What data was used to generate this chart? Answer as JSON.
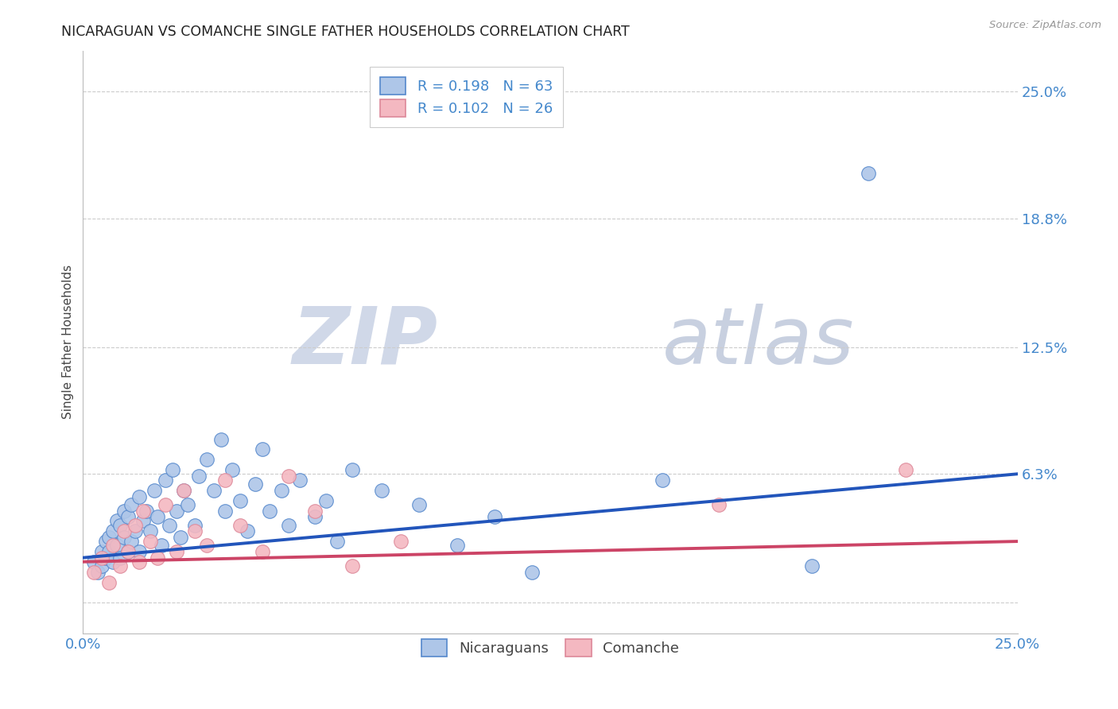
{
  "title": "NICARAGUAN VS COMANCHE SINGLE FATHER HOUSEHOLDS CORRELATION CHART",
  "source": "Source: ZipAtlas.com",
  "ylabel": "Single Father Households",
  "xmin": 0.0,
  "xmax": 0.25,
  "ymin": -0.015,
  "ymax": 0.27,
  "ytick_positions": [
    0.0,
    0.063,
    0.125,
    0.188,
    0.25
  ],
  "ytick_labels": [
    "",
    "6.3%",
    "12.5%",
    "18.8%",
    "25.0%"
  ],
  "xtick_positions": [
    0.0,
    0.05,
    0.1,
    0.15,
    0.2,
    0.25
  ],
  "xtick_labels": [
    "0.0%",
    "",
    "",
    "",
    "",
    "25.0%"
  ],
  "blue_R": 0.198,
  "blue_N": 63,
  "pink_R": 0.102,
  "pink_N": 26,
  "blue_color": "#aec6e8",
  "pink_color": "#f4b8c1",
  "blue_edge_color": "#5588cc",
  "pink_edge_color": "#dd8899",
  "blue_line_color": "#2255bb",
  "pink_line_color": "#cc4466",
  "title_color": "#222222",
  "axis_label_color": "#444444",
  "tick_label_color": "#4488cc",
  "grid_color": "#cccccc",
  "background_color": "#ffffff",
  "watermark_zip_color": "#d0d8e8",
  "watermark_atlas_color": "#c8d0e0",
  "blue_line_y0": 0.022,
  "blue_line_y1": 0.063,
  "pink_line_y0": 0.02,
  "pink_line_y1": 0.03,
  "blue_scatter_x": [
    0.003,
    0.004,
    0.005,
    0.005,
    0.006,
    0.006,
    0.007,
    0.007,
    0.008,
    0.008,
    0.009,
    0.009,
    0.01,
    0.01,
    0.011,
    0.011,
    0.012,
    0.012,
    0.013,
    0.013,
    0.014,
    0.015,
    0.015,
    0.016,
    0.017,
    0.018,
    0.019,
    0.02,
    0.021,
    0.022,
    0.023,
    0.024,
    0.025,
    0.026,
    0.027,
    0.028,
    0.03,
    0.031,
    0.033,
    0.035,
    0.037,
    0.038,
    0.04,
    0.042,
    0.044,
    0.046,
    0.048,
    0.05,
    0.053,
    0.055,
    0.058,
    0.062,
    0.065,
    0.068,
    0.072,
    0.08,
    0.09,
    0.1,
    0.11,
    0.12,
    0.155,
    0.195,
    0.21
  ],
  "blue_scatter_y": [
    0.02,
    0.015,
    0.025,
    0.018,
    0.022,
    0.03,
    0.025,
    0.032,
    0.02,
    0.035,
    0.028,
    0.04,
    0.022,
    0.038,
    0.032,
    0.045,
    0.025,
    0.042,
    0.03,
    0.048,
    0.035,
    0.025,
    0.052,
    0.04,
    0.045,
    0.035,
    0.055,
    0.042,
    0.028,
    0.06,
    0.038,
    0.065,
    0.045,
    0.032,
    0.055,
    0.048,
    0.038,
    0.062,
    0.07,
    0.055,
    0.08,
    0.045,
    0.065,
    0.05,
    0.035,
    0.058,
    0.075,
    0.045,
    0.055,
    0.038,
    0.06,
    0.042,
    0.05,
    0.03,
    0.065,
    0.055,
    0.048,
    0.028,
    0.042,
    0.015,
    0.06,
    0.018,
    0.21
  ],
  "pink_scatter_x": [
    0.003,
    0.005,
    0.007,
    0.008,
    0.01,
    0.011,
    0.012,
    0.014,
    0.015,
    0.016,
    0.018,
    0.02,
    0.022,
    0.025,
    0.027,
    0.03,
    0.033,
    0.038,
    0.042,
    0.048,
    0.055,
    0.062,
    0.072,
    0.085,
    0.17,
    0.22
  ],
  "pink_scatter_y": [
    0.015,
    0.022,
    0.01,
    0.028,
    0.018,
    0.035,
    0.025,
    0.038,
    0.02,
    0.045,
    0.03,
    0.022,
    0.048,
    0.025,
    0.055,
    0.035,
    0.028,
    0.06,
    0.038,
    0.025,
    0.062,
    0.045,
    0.018,
    0.03,
    0.048,
    0.065
  ]
}
